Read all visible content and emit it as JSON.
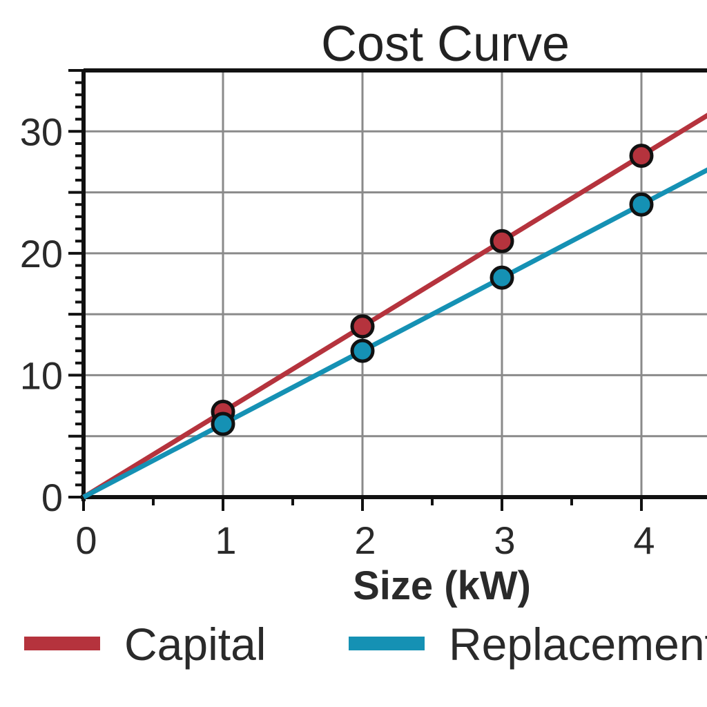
{
  "chart_data": {
    "type": "line",
    "title": "Cost Curve",
    "xlabel": "Size (kW)",
    "ylabel": "",
    "xlim": [
      0,
      4.5
    ],
    "ylim": [
      0,
      35
    ],
    "x_ticks": [
      0,
      1,
      2,
      3,
      4
    ],
    "x_tick_labels": [
      "0",
      "1",
      "2",
      "3",
      "4"
    ],
    "y_ticks": [
      0,
      10,
      20,
      30
    ],
    "y_tick_labels": [
      "0",
      "10",
      "20",
      "30"
    ],
    "grid": true,
    "legend_position": "bottom",
    "series": [
      {
        "name": "Capital",
        "color": "#b5333d",
        "x": [
          0,
          1,
          2,
          3,
          4
        ],
        "y": [
          0,
          7,
          14,
          21,
          28
        ]
      },
      {
        "name": "Replacement",
        "color": "#1591b4",
        "x": [
          0,
          1,
          2,
          3,
          4
        ],
        "y": [
          0,
          6,
          12,
          18,
          24
        ]
      }
    ]
  }
}
